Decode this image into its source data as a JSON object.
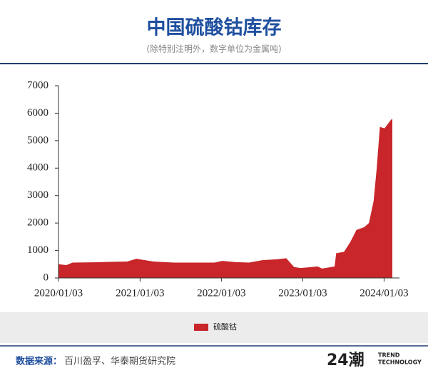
{
  "chart_data": {
    "type": "area",
    "title": "中国硫酸钴库存",
    "subtitle": "(除特别注明外，数字单位为金属吨)",
    "x": [
      "2020/01/03",
      "2020/02/07",
      "2020/03/06",
      "2020/06/05",
      "2020/09/04",
      "2020/11/06",
      "2020/12/18",
      "2021/01/15",
      "2021/03/05",
      "2021/06/04",
      "2021/09/03",
      "2021/12/03",
      "2022/01/07",
      "2022/03/04",
      "2022/05/06",
      "2022/07/08",
      "2022/09/09",
      "2022/10/21",
      "2022/11/25",
      "2022/12/23",
      "2023/01/20",
      "2023/03/10",
      "2023/03/31",
      "2023/05/26",
      "2023/06/02",
      "2023/07/07",
      "2023/08/04",
      "2023/09/01",
      "2023/10/06",
      "2023/10/27",
      "2023/11/17",
      "2023/12/01",
      "2023/12/15",
      "2024/01/05",
      "2024/01/19",
      "2024/02/02",
      "2024/02/09"
    ],
    "series": [
      {
        "name": "硫酸钴",
        "color": "#c8262a",
        "values": [
          500,
          470,
          560,
          570,
          590,
          600,
          700,
          660,
          600,
          560,
          560,
          560,
          620,
          580,
          560,
          650,
          680,
          720,
          400,
          360,
          380,
          420,
          340,
          420,
          900,
          950,
          1300,
          1750,
          1850,
          2000,
          2800,
          4000,
          5500,
          5450,
          5600,
          5750,
          5800
        ]
      }
    ],
    "xlim": [
      "2020/01/03",
      "2024/03/12"
    ],
    "xticks": [
      "2020/01/03",
      "2021/01/03",
      "2022/01/03",
      "2023/01/03",
      "2024/01/03"
    ],
    "ylim": [
      0,
      7000
    ],
    "yticks": [
      0,
      1000,
      2000,
      3000,
      4000,
      5000,
      6000,
      7000
    ],
    "grid": false,
    "legend": "bottom"
  },
  "footer": {
    "source_label": "数据来源：",
    "source_text": "百川盈孚、华泰期货研究院",
    "logo_mark": "24潮",
    "logo_line1": "TREND",
    "logo_line2": "TECHNOLOGY"
  }
}
